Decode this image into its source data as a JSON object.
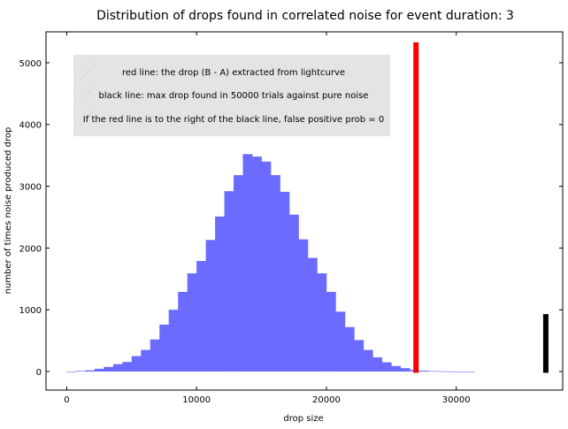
{
  "chart_data": {
    "type": "bar",
    "title": "Distribution of drops found in correlated noise for event duration: 3",
    "xlabel": "drop size",
    "ylabel": "number of times noise produced drop",
    "xlim": [
      -1600,
      38200
    ],
    "ylim": [
      -300,
      5500
    ],
    "xticks": [
      0,
      10000,
      20000,
      30000
    ],
    "yticks": [
      0,
      1000,
      2000,
      3000,
      4000,
      5000
    ],
    "xtick_labels": [
      "0",
      "10000",
      "20000",
      "30000"
    ],
    "ytick_labels": [
      "0",
      "1000",
      "2000",
      "3000",
      "4000",
      "5000"
    ],
    "grid": false,
    "legend_position": "top-left",
    "annotations": [
      "red line: the drop (B - A) extracted from lightcurve",
      "black line: max drop found in 50000 trials against pure noise",
      "If the red line is to the right of the black line, false positive prob = 0"
    ],
    "histogram": {
      "bin_width": 714,
      "bin_edges_start": 0,
      "counts": [
        0,
        10,
        20,
        45,
        75,
        120,
        155,
        250,
        350,
        520,
        760,
        1000,
        1290,
        1590,
        1790,
        2130,
        2510,
        2920,
        3180,
        3520,
        3480,
        3400,
        3180,
        2910,
        2540,
        2140,
        1840,
        1590,
        1290,
        970,
        720,
        510,
        350,
        230,
        150,
        90,
        55,
        25,
        15,
        8,
        4,
        2,
        1,
        0
      ],
      "color": "#6b6bff"
    },
    "markers": [
      {
        "label": "red line",
        "x": 26900,
        "height": 5330,
        "color": "#ff0000"
      },
      {
        "label": "black line",
        "x": 36900,
        "height": 930,
        "color": "#000000"
      }
    ]
  }
}
